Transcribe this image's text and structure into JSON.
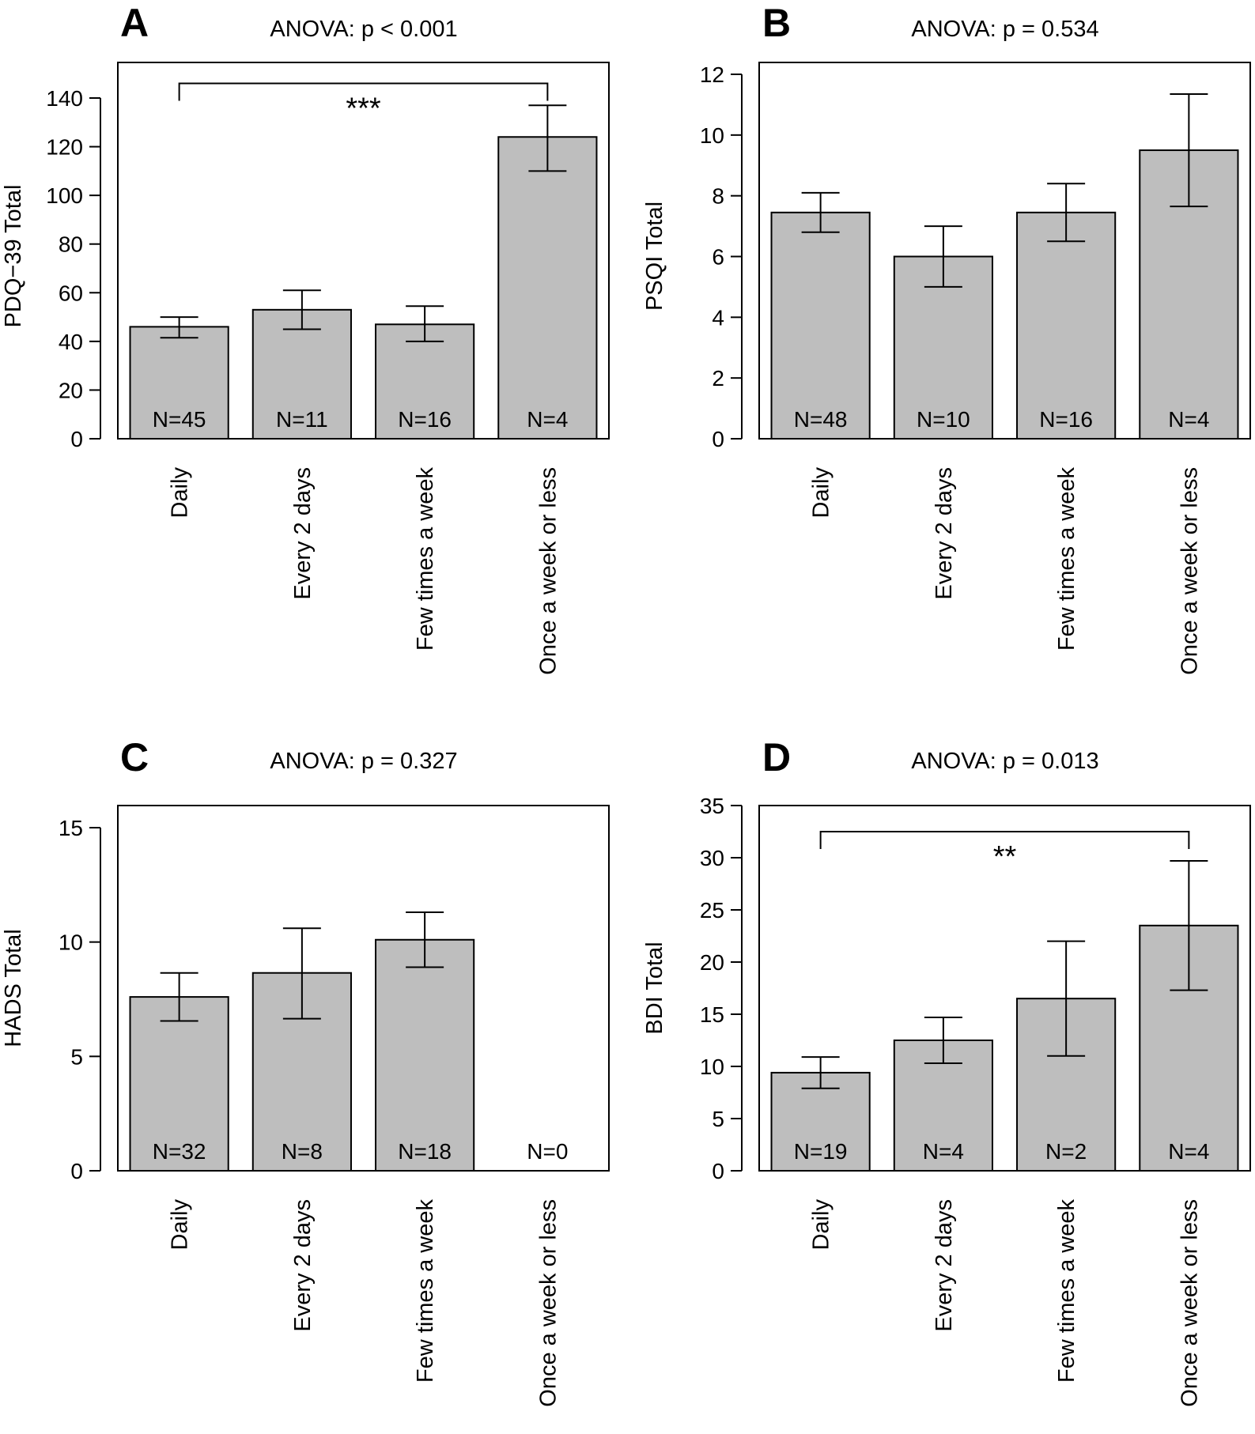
{
  "colors": {
    "bar_fill": "#bebebe",
    "stroke": "#000000",
    "background": "#ffffff"
  },
  "chart_data": [
    {
      "type": "bar",
      "panel": "A",
      "title": "ANOVA: p < 0.001",
      "ylabel": "PDQ−39 Total",
      "xlabel": "",
      "categories": [
        "Daily",
        "Every 2 days",
        "Few times a week",
        "Once a week or less"
      ],
      "values": [
        46,
        53,
        47,
        124
      ],
      "error_low": [
        41.5,
        45,
        40,
        110
      ],
      "error_high": [
        50,
        61,
        54.5,
        137
      ],
      "n_labels": [
        "N=45",
        "N=11",
        "N=16",
        "N=4"
      ],
      "ylim": [
        0,
        150
      ],
      "yticks": [
        0,
        20,
        40,
        60,
        80,
        100,
        120,
        140
      ],
      "ytick_labels": [
        "0",
        "20",
        "40",
        "60",
        "80",
        "100",
        "120",
        "140"
      ],
      "significance": {
        "from": 0,
        "to": 3,
        "label": "***",
        "y": 146
      },
      "grid": false
    },
    {
      "type": "bar",
      "panel": "B",
      "title": "ANOVA: p = 0.534",
      "ylabel": "PSQI Total",
      "xlabel": "",
      "categories": [
        "Daily",
        "Every 2 days",
        "Few times a week",
        "Once a week or less"
      ],
      "values": [
        7.45,
        6.0,
        7.45,
        9.5
      ],
      "error_low": [
        6.8,
        5.0,
        6.5,
        7.65
      ],
      "error_high": [
        8.1,
        7.0,
        8.4,
        11.35
      ],
      "n_labels": [
        "N=48",
        "N=10",
        "N=16",
        "N=4"
      ],
      "ylim": [
        0,
        12
      ],
      "yticks": [
        0,
        2,
        4,
        6,
        8,
        10,
        12
      ],
      "ytick_labels": [
        "0",
        "2",
        "4",
        "6",
        "8",
        "10",
        "12"
      ],
      "significance": null,
      "grid": false
    },
    {
      "type": "bar",
      "panel": "C",
      "title": "ANOVA: p = 0.327",
      "ylabel": "HADS Total",
      "xlabel": "",
      "categories": [
        "Daily",
        "Every 2 days",
        "Few times a week",
        "Once a week or less"
      ],
      "values": [
        7.6,
        8.65,
        10.1,
        null
      ],
      "error_low": [
        6.55,
        6.65,
        8.9,
        null
      ],
      "error_high": [
        8.65,
        10.6,
        11.3,
        null
      ],
      "n_labels": [
        "N=32",
        "N=8",
        "N=18",
        "N=0"
      ],
      "ylim": [
        0,
        16
      ],
      "yticks": [
        0,
        5,
        10,
        15
      ],
      "ytick_labels": [
        "0",
        "5",
        "10",
        "15"
      ],
      "significance": null,
      "grid": false
    },
    {
      "type": "bar",
      "panel": "D",
      "title": "ANOVA: p = 0.013",
      "ylabel": "BDI Total",
      "xlabel": "",
      "categories": [
        "Daily",
        "Every 2 days",
        "Few times a week",
        "Once a week or less"
      ],
      "values": [
        9.4,
        12.5,
        16.5,
        23.5
      ],
      "error_low": [
        7.9,
        10.3,
        11.0,
        17.3
      ],
      "error_high": [
        10.9,
        14.7,
        22.0,
        29.7
      ],
      "n_labels": [
        "N=19",
        "N=4",
        "N=2",
        "N=4"
      ],
      "ylim": [
        0,
        35
      ],
      "yticks": [
        0,
        5,
        10,
        15,
        20,
        25,
        30,
        35
      ],
      "ytick_labels": [
        "0",
        "5",
        "10",
        "15",
        "20",
        "25",
        "30",
        "35"
      ],
      "significance": {
        "from": 0,
        "to": 3,
        "label": "**",
        "y": 32.5
      },
      "grid": false
    }
  ]
}
